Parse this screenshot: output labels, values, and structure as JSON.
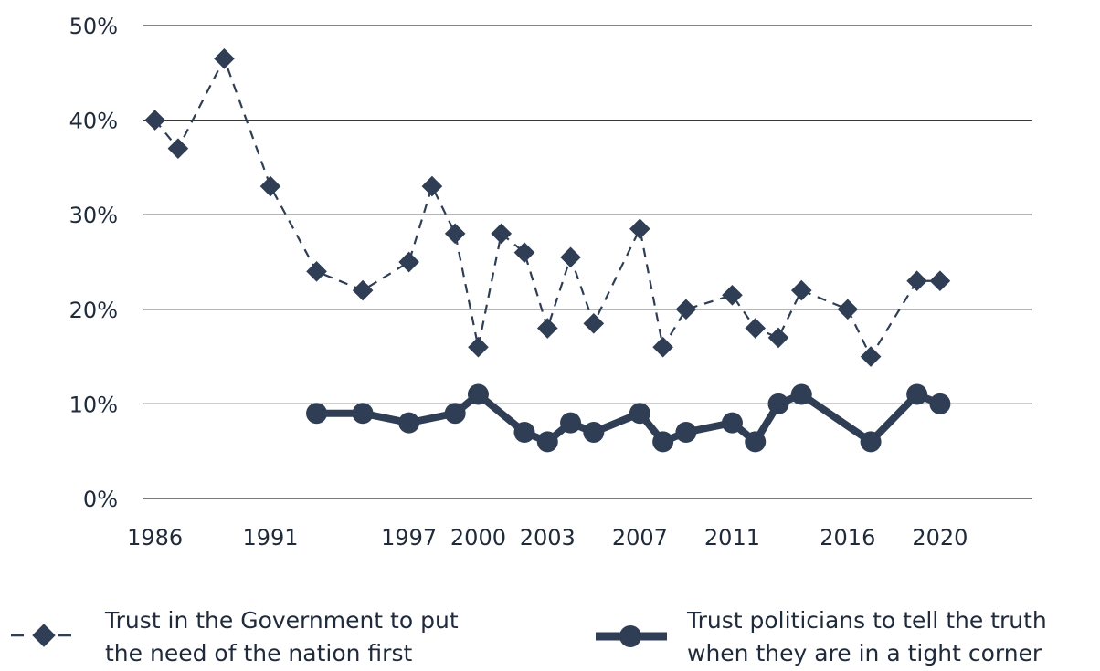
{
  "chart_data": {
    "type": "line",
    "x": [
      1986,
      1987,
      1989,
      1991,
      1993,
      1995,
      1997,
      1998,
      1999,
      2000,
      2001,
      2002,
      2003,
      2004,
      2005,
      2007,
      2008,
      2009,
      2011,
      2012,
      2013,
      2014,
      2016,
      2017,
      2019,
      2020,
      2021
    ],
    "xticks": [
      "1986",
      "1991",
      "1997",
      "2000",
      "2003",
      "2007",
      "2011",
      "2016",
      "2020"
    ],
    "yticks": [
      "0%",
      "10%",
      "20%",
      "30%",
      "40%",
      "50%"
    ],
    "ylim": [
      0,
      50
    ],
    "grid": "horizontal",
    "legend_position": "bottom",
    "series": [
      {
        "name": "Trust in the Government to put the need of the nation first",
        "style": "dashed-diamond",
        "values": [
          40,
          37,
          46.5,
          33,
          24,
          22,
          25,
          33,
          28,
          16,
          28,
          26,
          18,
          25.5,
          18.5,
          28.5,
          16,
          20,
          21.5,
          18,
          17,
          22,
          20,
          15,
          23,
          23,
          null
        ]
      },
      {
        "name": "Trust politicians to tell the truth when they are in a tight corner",
        "style": "solid-circle",
        "values": [
          null,
          null,
          null,
          null,
          9,
          9,
          8,
          null,
          9,
          11,
          null,
          7,
          6,
          8,
          7,
          9,
          6,
          7,
          8,
          6,
          10,
          11,
          null,
          6,
          11,
          10,
          null
        ]
      }
    ],
    "legend": {
      "series1_line1": "Trust in the Government to put",
      "series1_line2": "the need of the nation first",
      "series2_line1": "Trust politicians to tell the truth",
      "series2_line2": "when they are in a tight corner"
    },
    "color": "#2f3e54"
  }
}
